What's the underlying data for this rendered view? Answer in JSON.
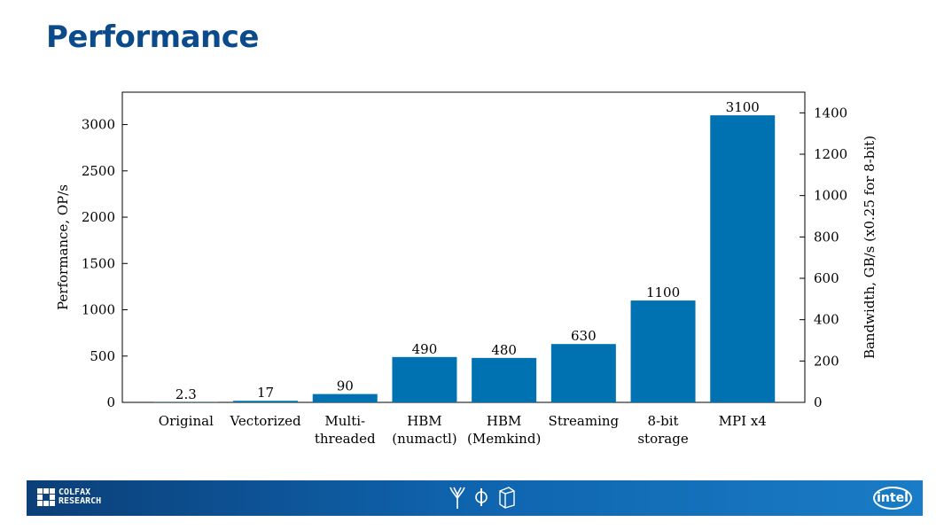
{
  "slide": {
    "title": "Performance"
  },
  "chart_data": {
    "type": "bar",
    "categories": [
      "Original",
      "Vectorized",
      "Multi-\nthreaded",
      "HBM\n(numactl)",
      "HBM\n(Memkind)",
      "Streaming",
      "8-bit\nstorage",
      "MPI x4"
    ],
    "values": [
      2.3,
      17,
      90,
      490,
      480,
      630,
      1100,
      3100
    ],
    "data_labels": [
      "2.3",
      "17",
      "90",
      "490",
      "480",
      "630",
      "1100",
      "3100"
    ],
    "ylabel": "Performance, OP/s",
    "ylabel_right": "Bandwidth, GB/s (x0.25 for 8-bit)",
    "ylim": [
      0,
      3350
    ],
    "yticks": [
      0,
      500,
      1000,
      1500,
      2000,
      2500,
      3000
    ],
    "ylim_right": [
      0,
      1500
    ],
    "yticks_right": [
      0,
      200,
      400,
      600,
      800,
      1000,
      1200,
      1400
    ],
    "bar_color": "#0072b2",
    "grid": false
  },
  "footer": {
    "logo_text_line1": "COLFAX",
    "logo_text_line2": "RESEARCH",
    "intel_text": "intel",
    "icons": [
      "tree-icon",
      "circle-bar-icon",
      "cube-icon"
    ]
  }
}
